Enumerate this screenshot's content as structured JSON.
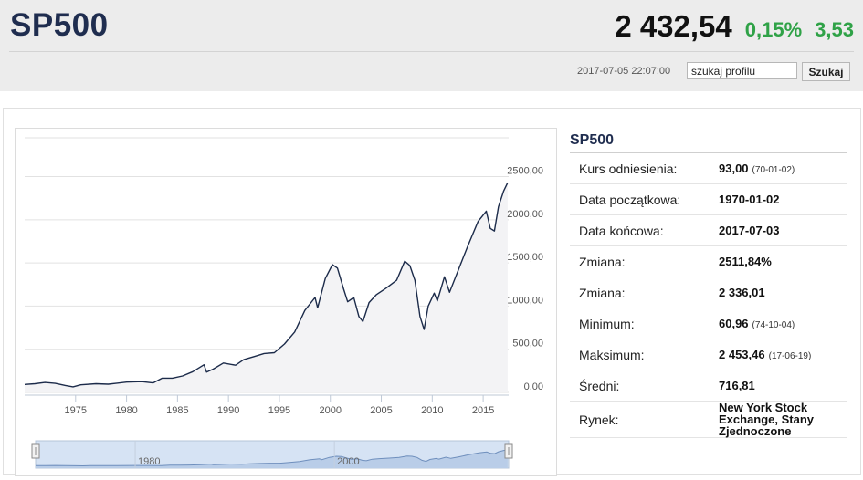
{
  "header": {
    "title": "SP500",
    "price": "2 432,54",
    "change_percent": "0,15%",
    "change_value": "3,53",
    "timestamp": "2017-07-05 22:07:00",
    "search_value": "szukaj profilu",
    "search_button": "Szukaj",
    "change_color": "#2fa247"
  },
  "info": {
    "title": "SP500",
    "rows": [
      {
        "label": "Kurs odniesienia:",
        "value": "93,00",
        "sub": "(70-01-02)"
      },
      {
        "label": "Data początkowa:",
        "value": "1970-01-02",
        "sub": ""
      },
      {
        "label": "Data końcowa:",
        "value": "2017-07-03",
        "sub": ""
      },
      {
        "label": "Zmiana:",
        "value": "2511,84%",
        "sub": ""
      },
      {
        "label": "Zmiana:",
        "value": "2 336,01",
        "sub": ""
      },
      {
        "label": "Minimum:",
        "value": "60,96",
        "sub": "(74-10-04)"
      },
      {
        "label": "Maksimum:",
        "value": "2 453,46",
        "sub": "(17-06-19)"
      },
      {
        "label": "Średni:",
        "value": "716,81",
        "sub": ""
      },
      {
        "label": "Rynek:",
        "value": "New York Stock Exchange, Stany Zjednoczone",
        "sub": ""
      }
    ]
  },
  "chart_data": {
    "type": "area",
    "title": "",
    "xlabel": "",
    "ylabel": "",
    "x_ticks": [
      "1975",
      "1980",
      "1985",
      "1990",
      "1995",
      "2000",
      "2005",
      "2010",
      "2015"
    ],
    "y_ticks": [
      "0,00",
      "500,00",
      "1000,00",
      "1500,00",
      "2000,00",
      "2500,00"
    ],
    "xlim": [
      1970,
      2017.5
    ],
    "ylim": [
      0,
      2950
    ],
    "grid": true,
    "navigator_labels": [
      "1980",
      "2000"
    ],
    "series": [
      {
        "x": [
          1970,
          1971,
          1972,
          1973,
          1974,
          1974.75,
          1975.5,
          1977,
          1978.2,
          1980,
          1981.5,
          1982.6,
          1983.5,
          1984.5,
          1985.5,
          1986.5,
          1987.6,
          1987.85,
          1988.5,
          1989.5,
          1990.7,
          1991.5,
          1992.5,
          1993.5,
          1994.5,
          1995.5,
          1996.5,
          1997.5,
          1998.5,
          1998.75,
          1999.5,
          2000.2,
          2000.7,
          2001.3,
          2001.7,
          2002.3,
          2002.8,
          2003.2,
          2003.8,
          2004.5,
          2005.5,
          2006.5,
          2007.3,
          2007.8,
          2008.3,
          2008.8,
          2009.2,
          2009.6,
          2010.2,
          2010.5,
          2011.2,
          2011.7,
          2012.5,
          2013.5,
          2014.5,
          2015.3,
          2015.7,
          2016.1,
          2016.5,
          2017.0,
          2017.4
        ],
        "y": [
          92,
          100,
          115,
          105,
          80,
          65,
          88,
          100,
          95,
          120,
          125,
          110,
          165,
          165,
          190,
          240,
          320,
          235,
          270,
          340,
          315,
          380,
          415,
          450,
          460,
          560,
          700,
          950,
          1100,
          980,
          1320,
          1480,
          1440,
          1200,
          1050,
          1100,
          880,
          820,
          1040,
          1130,
          1210,
          1300,
          1520,
          1470,
          1300,
          880,
          730,
          1000,
          1150,
          1060,
          1340,
          1160,
          1400,
          1700,
          1980,
          2100,
          1900,
          1870,
          2150,
          2330,
          2430
        ]
      }
    ]
  }
}
